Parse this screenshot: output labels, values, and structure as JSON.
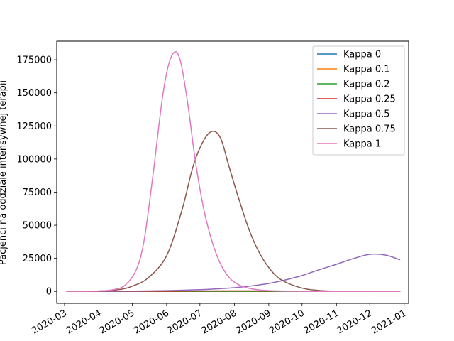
{
  "chart_data": {
    "type": "line",
    "title": "",
    "xlabel": "",
    "ylabel": "Pacjenci na oddziale intensywnej terapii",
    "xlim": [
      "2020-02-23",
      "2021-01-05"
    ],
    "ylim": [
      -9000,
      189000
    ],
    "grid": false,
    "legend_position": "top-right",
    "x_ticks": [
      "2020-03",
      "2020-04",
      "2020-05",
      "2020-06",
      "2020-07",
      "2020-08",
      "2020-09",
      "2020-10",
      "2020-11",
      "2020-12",
      "2021-01"
    ],
    "x_tick_dates": [
      "2020-03-01",
      "2020-04-01",
      "2020-05-01",
      "2020-06-01",
      "2020-07-01",
      "2020-08-01",
      "2020-09-01",
      "2020-10-01",
      "2020-11-01",
      "2020-12-01",
      "2021-01-01"
    ],
    "y_ticks": [
      0,
      25000,
      50000,
      75000,
      100000,
      125000,
      150000,
      175000
    ],
    "y_tick_labels": [
      "0",
      "25000",
      "50000",
      "75000",
      "100000",
      "125000",
      "150000",
      "175000"
    ],
    "series": [
      {
        "name": "Kappa 0",
        "color": "#1f77b4",
        "points": [
          [
            "2020-03-03",
            0
          ],
          [
            "2020-05-01",
            0
          ],
          [
            "2020-07-01",
            0
          ],
          [
            "2020-09-01",
            0
          ],
          [
            "2020-11-01",
            0
          ],
          [
            "2020-12-28",
            0
          ]
        ]
      },
      {
        "name": "Kappa 0.1",
        "color": "#ff7f0e",
        "points": [
          [
            "2020-03-03",
            0
          ],
          [
            "2020-05-01",
            0
          ],
          [
            "2020-07-01",
            0
          ],
          [
            "2020-09-01",
            0
          ],
          [
            "2020-11-01",
            0
          ],
          [
            "2020-12-28",
            0
          ]
        ]
      },
      {
        "name": "Kappa 0.2",
        "color": "#2ca02c",
        "points": [
          [
            "2020-03-03",
            0
          ],
          [
            "2020-05-01",
            0
          ],
          [
            "2020-07-01",
            0
          ],
          [
            "2020-09-01",
            0
          ],
          [
            "2020-11-01",
            0
          ],
          [
            "2020-12-28",
            0
          ]
        ]
      },
      {
        "name": "Kappa 0.25",
        "color": "#d62728",
        "points": [
          [
            "2020-03-03",
            0
          ],
          [
            "2020-05-01",
            50
          ],
          [
            "2020-06-01",
            150
          ],
          [
            "2020-07-01",
            300
          ],
          [
            "2020-08-01",
            400
          ],
          [
            "2020-09-01",
            350
          ],
          [
            "2020-10-01",
            200
          ],
          [
            "2020-11-01",
            100
          ],
          [
            "2020-12-28",
            50
          ]
        ]
      },
      {
        "name": "Kappa 0.5",
        "color": "#9467bd",
        "points": [
          [
            "2020-03-03",
            0
          ],
          [
            "2020-04-01",
            100
          ],
          [
            "2020-05-01",
            250
          ],
          [
            "2020-06-01",
            600
          ],
          [
            "2020-07-01",
            1300
          ],
          [
            "2020-07-15",
            1900
          ],
          [
            "2020-08-01",
            2800
          ],
          [
            "2020-08-15",
            4000
          ],
          [
            "2020-09-01",
            6000
          ],
          [
            "2020-09-15",
            8500
          ],
          [
            "2020-10-01",
            12000
          ],
          [
            "2020-10-15",
            16000
          ],
          [
            "2020-11-01",
            20500
          ],
          [
            "2020-11-15",
            24500
          ],
          [
            "2020-12-01",
            28000
          ],
          [
            "2020-12-15",
            27500
          ],
          [
            "2020-12-28",
            24000
          ]
        ]
      },
      {
        "name": "Kappa 0.75",
        "color": "#8c564b",
        "points": [
          [
            "2020-03-03",
            0
          ],
          [
            "2020-04-01",
            300
          ],
          [
            "2020-04-20",
            1500
          ],
          [
            "2020-05-01",
            4000
          ],
          [
            "2020-05-15",
            10000
          ],
          [
            "2020-06-01",
            27000
          ],
          [
            "2020-06-15",
            62000
          ],
          [
            "2020-06-25",
            95000
          ],
          [
            "2020-07-05",
            115000
          ],
          [
            "2020-07-13",
            121000
          ],
          [
            "2020-07-20",
            115000
          ],
          [
            "2020-07-27",
            95000
          ],
          [
            "2020-08-05",
            70000
          ],
          [
            "2020-08-15",
            45000
          ],
          [
            "2020-08-25",
            27000
          ],
          [
            "2020-09-05",
            14000
          ],
          [
            "2020-09-15",
            7500
          ],
          [
            "2020-10-01",
            2500
          ],
          [
            "2020-10-15",
            800
          ],
          [
            "2020-11-01",
            200
          ],
          [
            "2020-12-28",
            0
          ]
        ]
      },
      {
        "name": "Kappa 1",
        "color": "#e377c2",
        "points": [
          [
            "2020-03-03",
            0
          ],
          [
            "2020-04-01",
            300
          ],
          [
            "2020-04-15",
            1500
          ],
          [
            "2020-04-25",
            5000
          ],
          [
            "2020-05-05",
            17000
          ],
          [
            "2020-05-12",
            40000
          ],
          [
            "2020-05-20",
            90000
          ],
          [
            "2020-05-28",
            145000
          ],
          [
            "2020-06-03",
            172000
          ],
          [
            "2020-06-09",
            181000
          ],
          [
            "2020-06-14",
            172000
          ],
          [
            "2020-06-20",
            142000
          ],
          [
            "2020-06-27",
            98000
          ],
          [
            "2020-07-05",
            60000
          ],
          [
            "2020-07-15",
            30000
          ],
          [
            "2020-07-25",
            13000
          ],
          [
            "2020-08-05",
            5000
          ],
          [
            "2020-08-20",
            1500
          ],
          [
            "2020-09-10",
            300
          ],
          [
            "2020-10-15",
            0
          ],
          [
            "2020-12-28",
            0
          ]
        ]
      }
    ]
  }
}
